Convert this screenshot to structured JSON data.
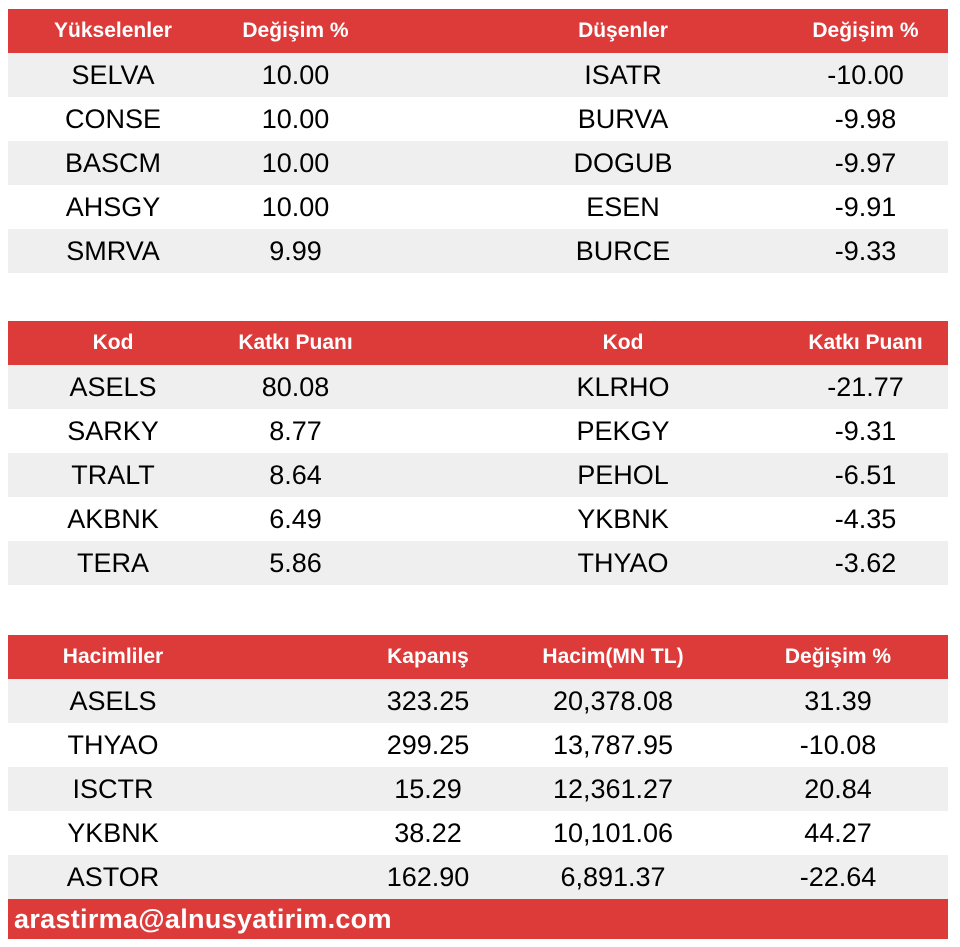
{
  "movers": {
    "headers": [
      "Yükselenler",
      "Değişim %",
      "Düşenler",
      "Değişim %"
    ],
    "rows": [
      [
        "SELVA",
        "10.00",
        "ISATR",
        "-10.00"
      ],
      [
        "CONSE",
        "10.00",
        "BURVA",
        "-9.98"
      ],
      [
        "BASCM",
        "10.00",
        "DOGUB",
        "-9.97"
      ],
      [
        "AHSGY",
        "10.00",
        "ESEN",
        "-9.91"
      ],
      [
        "SMRVA",
        "9.99",
        "BURCE",
        "-9.33"
      ]
    ]
  },
  "contribution": {
    "headers": [
      "Kod",
      "Katkı Puanı",
      "Kod",
      "Katkı Puanı"
    ],
    "rows": [
      [
        "ASELS",
        "80.08",
        "KLRHO",
        "-21.77"
      ],
      [
        "SARKY",
        "8.77",
        "PEKGY",
        "-9.31"
      ],
      [
        "TRALT",
        "8.64",
        "PEHOL",
        "-6.51"
      ],
      [
        "AKBNK",
        "6.49",
        "YKBNK",
        "-4.35"
      ],
      [
        "TERA",
        "5.86",
        "THYAO",
        "-3.62"
      ]
    ]
  },
  "volume": {
    "headers": [
      "Hacimliler",
      "Kapanış",
      "Hacim(MN TL)",
      "Değişim %"
    ],
    "rows": [
      [
        "ASELS",
        "323.25",
        "20,378.08",
        "31.39"
      ],
      [
        "THYAO",
        "299.25",
        "13,787.95",
        "-10.08"
      ],
      [
        "ISCTR",
        "15.29",
        "12,361.27",
        "20.84"
      ],
      [
        "YKBNK",
        "38.22",
        "10,101.06",
        "44.27"
      ],
      [
        "ASTOR",
        "162.90",
        "6,891.37",
        "-22.64"
      ]
    ]
  },
  "footer": {
    "email": "arastirma@alnusyatirim.com"
  },
  "colors": {
    "header_bg": "#dd3a3a",
    "alt_row_bg": "#efefef",
    "header_text": "#ffffff"
  }
}
